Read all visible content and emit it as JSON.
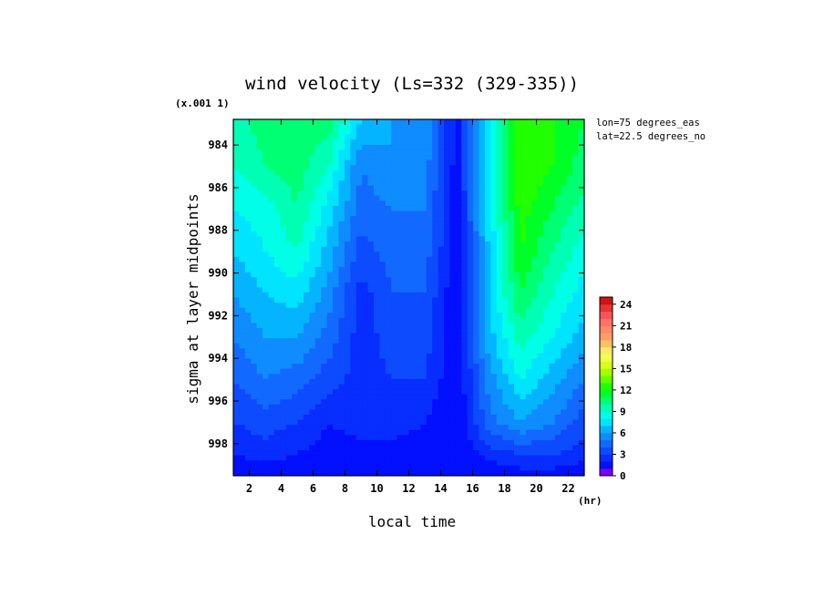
{
  "chart_data": {
    "type": "heatmap",
    "title": "wind velocity (Ls=332 (329-335))",
    "xlabel": "local time",
    "xunit": "(hr)",
    "ylabel": "sigma at layer midpoints",
    "yscale_note": "(x.001 1)",
    "annotations": [
      "lon=75 degrees_eas",
      "lat=22.5 degrees_no"
    ],
    "xlim": [
      1,
      23
    ],
    "ylim": [
      999.5,
      982.8
    ],
    "x_ticks": [
      2,
      4,
      6,
      8,
      10,
      12,
      14,
      16,
      18,
      20,
      22
    ],
    "y_ticks": [
      984,
      986,
      988,
      990,
      992,
      994,
      996,
      998
    ],
    "x": [
      1,
      3,
      5,
      7,
      9,
      11,
      13,
      15,
      17,
      19,
      21,
      23
    ],
    "y": [
      982.8,
      985,
      987,
      989,
      991,
      993,
      995,
      997,
      998.5,
      999.5
    ],
    "z": [
      [
        9.5,
        10.5,
        11,
        10.5,
        7,
        6,
        6,
        1.5,
        8,
        13,
        12,
        11
      ],
      [
        9,
        10,
        10.5,
        9,
        5,
        6,
        5.5,
        1.5,
        8,
        13,
        12,
        10.5
      ],
      [
        8,
        8.5,
        10,
        7.5,
        4.5,
        5,
        5,
        1.5,
        7.5,
        12.5,
        11,
        9.5
      ],
      [
        7,
        8,
        9,
        6.5,
        3.5,
        4.5,
        4.5,
        1.5,
        7,
        12,
        10,
        8.5
      ],
      [
        6,
        7,
        7.5,
        5.5,
        2.5,
        4,
        4,
        1,
        7,
        11,
        9,
        7.5
      ],
      [
        5,
        6,
        6,
        4.5,
        2.5,
        3.5,
        3.5,
        1,
        6.5,
        9.5,
        8,
        6.5
      ],
      [
        4,
        5,
        4.5,
        3.5,
        2.5,
        3,
        3,
        1,
        5.5,
        8,
        6.5,
        5
      ],
      [
        3,
        3.5,
        3,
        2,
        2.5,
        2.5,
        2,
        1,
        4.5,
        6,
        5,
        3.5
      ],
      [
        2,
        2.5,
        2,
        1.5,
        1.5,
        1.5,
        1.5,
        1,
        2.5,
        3,
        3,
        2.5
      ],
      [
        1,
        1,
        1,
        1,
        1,
        1,
        1,
        1,
        1,
        1.5,
        1.5,
        1
      ]
    ],
    "colorbar": {
      "min": 0,
      "max": 25,
      "step": 1,
      "ticks": [
        0,
        3,
        6,
        9,
        12,
        15,
        18,
        21,
        24
      ]
    },
    "colors": {
      "stops": [
        [
          0,
          "#ff00ff"
        ],
        [
          1,
          "#0000ff"
        ],
        [
          3,
          "#0a3cff"
        ],
        [
          5,
          "#1478ff"
        ],
        [
          7,
          "#00c8ff"
        ],
        [
          8,
          "#00ffff"
        ],
        [
          10,
          "#00ff99"
        ],
        [
          12,
          "#00ff00"
        ],
        [
          15,
          "#c8ff00"
        ],
        [
          17,
          "#ffff66"
        ],
        [
          19,
          "#ffaa66"
        ],
        [
          22,
          "#ff6666"
        ],
        [
          25,
          "#cc0000"
        ]
      ]
    }
  }
}
